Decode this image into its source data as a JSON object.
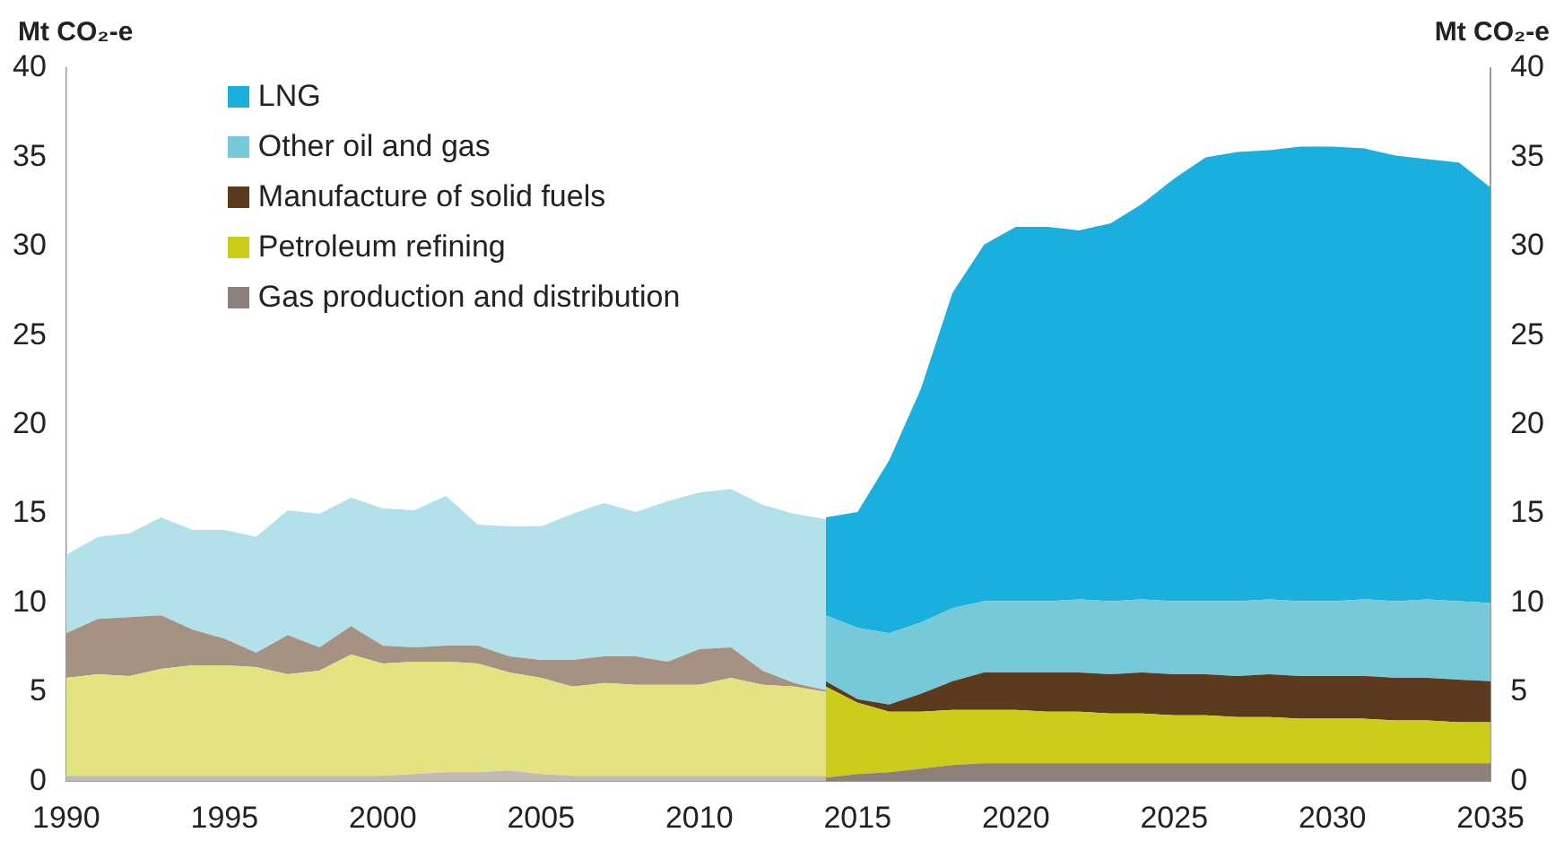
{
  "chart_data": {
    "type": "area",
    "stacked": true,
    "ylabel": "Mt CO₂-e",
    "y2label": "Mt CO₂-e",
    "x": [
      1990,
      1991,
      1992,
      1993,
      1994,
      1995,
      1996,
      1997,
      1998,
      1999,
      2000,
      2001,
      2002,
      2003,
      2004,
      2005,
      2006,
      2007,
      2008,
      2009,
      2010,
      2011,
      2012,
      2013,
      2014,
      2014,
      2015,
      2016,
      2017,
      2018,
      2019,
      2020,
      2021,
      2022,
      2023,
      2024,
      2025,
      2026,
      2027,
      2028,
      2029,
      2030,
      2031,
      2032,
      2033,
      2034,
      2035
    ],
    "xlim": [
      1990,
      2035
    ],
    "xticks": [
      1990,
      1995,
      2000,
      2005,
      2010,
      2015,
      2020,
      2025,
      2030,
      2035
    ],
    "ylim": [
      0,
      40
    ],
    "yticks": [
      0,
      5,
      10,
      15,
      20,
      25,
      30,
      35,
      40
    ],
    "y2lim": [
      0,
      40
    ],
    "y2ticks": [
      0,
      5,
      10,
      15,
      20,
      25,
      30,
      35,
      40
    ],
    "grid": false,
    "legend": "top left",
    "bands": [
      {
        "axis": "x",
        "from": 1990,
        "to": 2014,
        "color": "#ffffff"
      }
    ],
    "series": [
      {
        "name": "Gas production and distribution",
        "color": "#8c8078",
        "values": [
          0.3,
          0.3,
          0.3,
          0.3,
          0.3,
          0.3,
          0.3,
          0.3,
          0.3,
          0.3,
          0.3,
          0.4,
          0.5,
          0.5,
          0.6,
          0.4,
          0.3,
          0.3,
          0.3,
          0.3,
          0.3,
          0.3,
          0.3,
          0.3,
          0.3,
          0.2,
          0.4,
          0.5,
          0.7,
          0.9,
          1.0,
          1.0,
          1.0,
          1.0,
          1.0,
          1.0,
          1.0,
          1.0,
          1.0,
          1.0,
          1.0,
          1.0,
          1.0,
          1.0,
          1.0,
          1.0,
          1.0
        ]
      },
      {
        "name": "Petroleum refining",
        "color": "#cccc1a",
        "values": [
          5.5,
          5.7,
          5.6,
          6.0,
          6.2,
          6.2,
          6.1,
          5.7,
          5.9,
          6.8,
          6.3,
          6.3,
          6.2,
          6.1,
          5.5,
          5.4,
          5.0,
          5.2,
          5.1,
          5.1,
          5.1,
          5.5,
          5.1,
          5.0,
          4.7,
          5.1,
          4.0,
          3.4,
          3.2,
          3.1,
          3.0,
          3.0,
          2.9,
          2.9,
          2.8,
          2.8,
          2.7,
          2.7,
          2.6,
          2.6,
          2.5,
          2.5,
          2.5,
          2.4,
          2.4,
          2.3,
          2.3
        ]
      },
      {
        "name": "Manufacture of solid fuels",
        "color": "#5c3a1e",
        "values": [
          2.5,
          3.1,
          3.3,
          3.0,
          2.0,
          1.5,
          0.8,
          2.2,
          1.3,
          1.6,
          1.0,
          0.8,
          0.9,
          1.0,
          0.9,
          1.0,
          1.5,
          1.5,
          1.6,
          1.3,
          2.0,
          1.7,
          0.8,
          0.2,
          0.1,
          0.3,
          0.2,
          0.4,
          1.0,
          1.6,
          2.1,
          2.1,
          2.2,
          2.2,
          2.2,
          2.3,
          2.3,
          2.3,
          2.3,
          2.4,
          2.4,
          2.4,
          2.4,
          2.4,
          2.4,
          2.4,
          2.3
        ]
      },
      {
        "name": "Other oil and gas",
        "color": "#76c9d9",
        "values": [
          4.4,
          4.6,
          4.7,
          5.5,
          5.6,
          6.1,
          6.5,
          7.0,
          7.5,
          7.2,
          7.7,
          7.7,
          8.4,
          6.8,
          7.3,
          7.5,
          8.2,
          8.6,
          8.1,
          9.0,
          8.8,
          8.9,
          9.3,
          9.5,
          9.6,
          3.7,
          4.0,
          4.0,
          4.0,
          4.1,
          4.0,
          4.0,
          4.0,
          4.1,
          4.1,
          4.1,
          4.1,
          4.1,
          4.2,
          4.2,
          4.2,
          4.2,
          4.3,
          4.3,
          4.4,
          4.4,
          4.4
        ]
      },
      {
        "name": "LNG",
        "color": "#1aafdc",
        "values": [
          null,
          null,
          null,
          null,
          null,
          null,
          null,
          null,
          null,
          null,
          null,
          null,
          null,
          null,
          null,
          null,
          null,
          null,
          null,
          null,
          null,
          null,
          null,
          null,
          0,
          5.5,
          6.5,
          9.7,
          13.1,
          17.7,
          20.0,
          21.0,
          21.0,
          20.7,
          21.2,
          22.2,
          23.7,
          24.9,
          25.2,
          25.2,
          25.5,
          25.5,
          25.3,
          25.0,
          24.7,
          24.6,
          23.3
        ]
      }
    ]
  }
}
